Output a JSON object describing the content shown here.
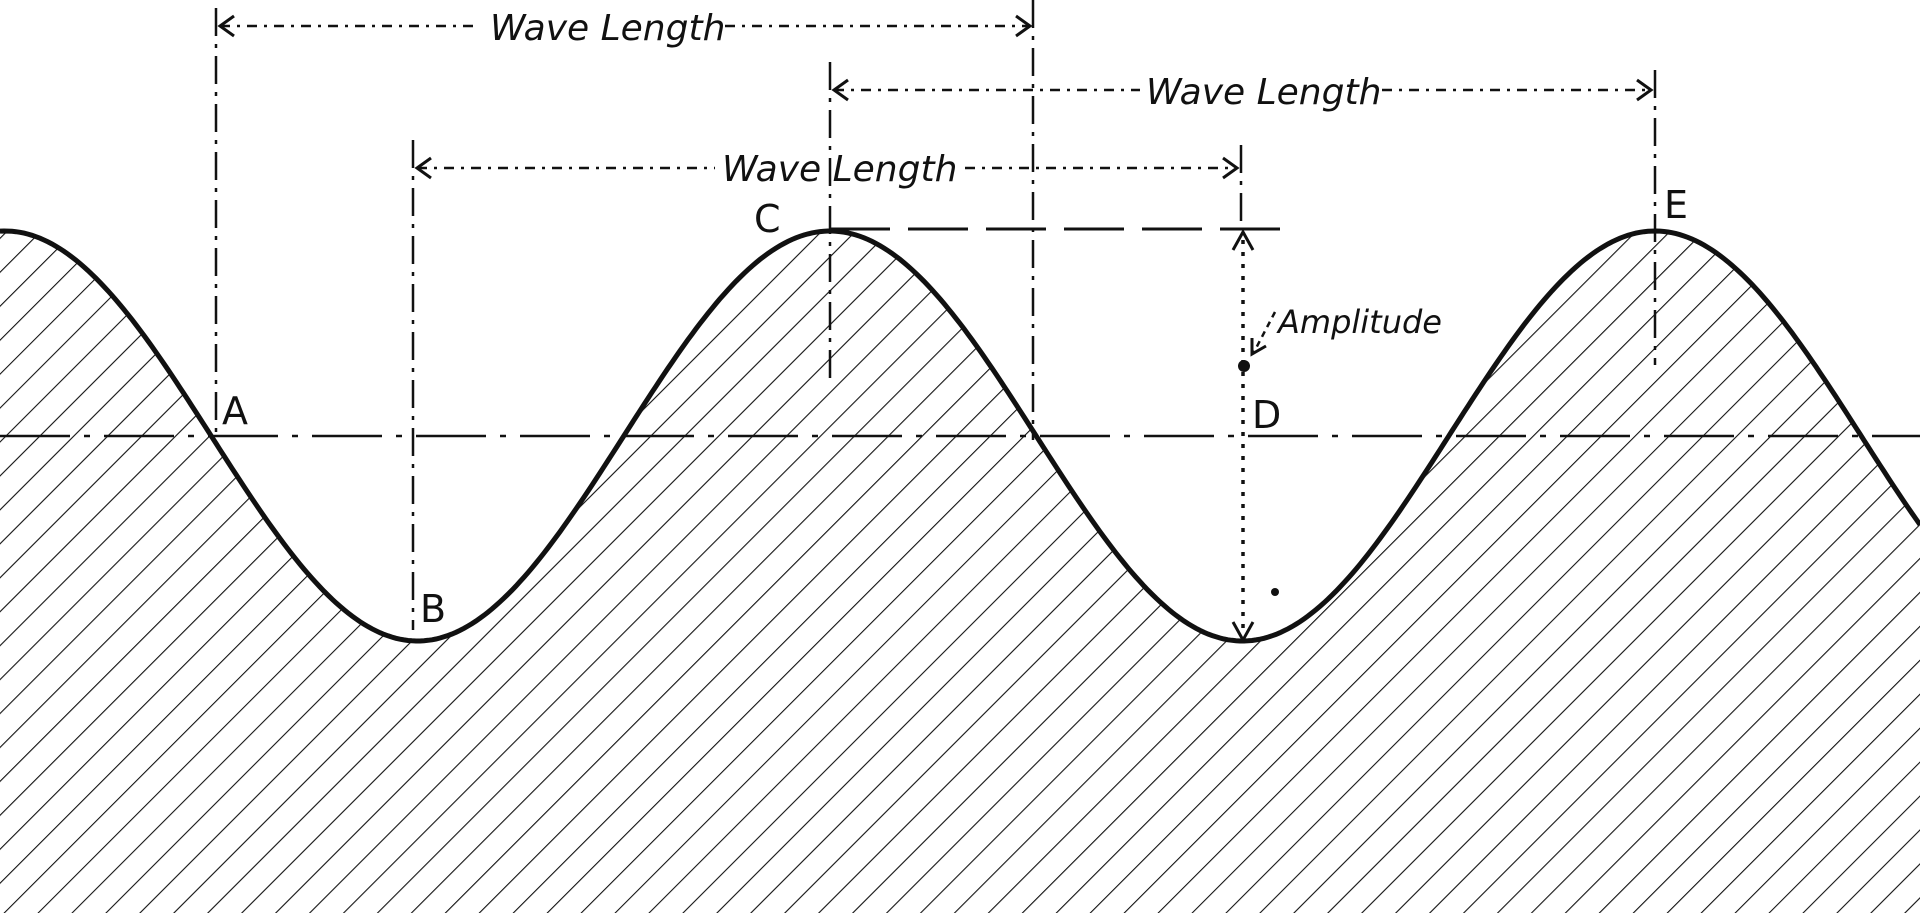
{
  "labels": {
    "wave_length_top": "Wave Length",
    "wave_length_right": "Wave Length",
    "wave_length_mid": "Wave Length",
    "amplitude": "Amplitude",
    "point_a": "A",
    "point_b": "B",
    "point_c": "C",
    "point_d": "D",
    "point_e": "E"
  },
  "colors": {
    "ink": "#111111",
    "paper": "#ffffff"
  }
}
